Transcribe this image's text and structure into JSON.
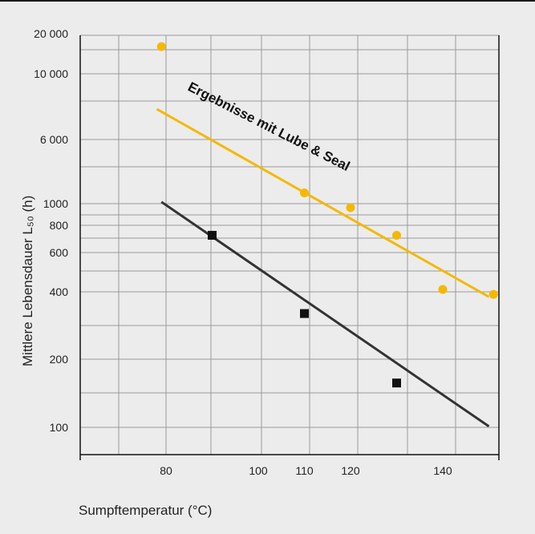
{
  "chart_data": {
    "type": "scatter",
    "xlabel": "Sumpftemperatur (°C)",
    "ylabel": "Mittlere Lebensdauer L₅₀ (h)",
    "x_ticks": [
      "80",
      "100",
      "110",
      "120",
      "140"
    ],
    "y_ticks": [
      "20 000",
      "10 000",
      "6 000",
      "1000",
      "800",
      "600",
      "400",
      "200",
      "100"
    ],
    "grid": true,
    "colors": {
      "highlight": "#f5b800",
      "baseline": "#333333",
      "grid": "#9a9a9a",
      "axis": "#111111"
    },
    "annotation": "Ergebnisse mit Lube & Seal",
    "series": [
      {
        "marker": "circle",
        "color": "#f5b800",
        "points": [
          {
            "x": 79,
            "y": 16000
          },
          {
            "x": 110,
            "y": 1350
          },
          {
            "x": 120,
            "y": 960
          },
          {
            "x": 130,
            "y": 720
          },
          {
            "x": 140,
            "y": 410
          },
          {
            "x": 151,
            "y": 390
          }
        ],
        "trend": [
          {
            "x": 78,
            "y": 7600
          },
          {
            "x": 150,
            "y": 380
          }
        ]
      },
      {
        "marker": "square",
        "color": "#111111",
        "points": [
          {
            "x": 90,
            "y": 720
          },
          {
            "x": 110,
            "y": 320
          },
          {
            "x": 130,
            "y": 157
          }
        ],
        "trend": [
          {
            "x": 79,
            "y": 1050
          },
          {
            "x": 150,
            "y": 101
          }
        ]
      }
    ]
  }
}
